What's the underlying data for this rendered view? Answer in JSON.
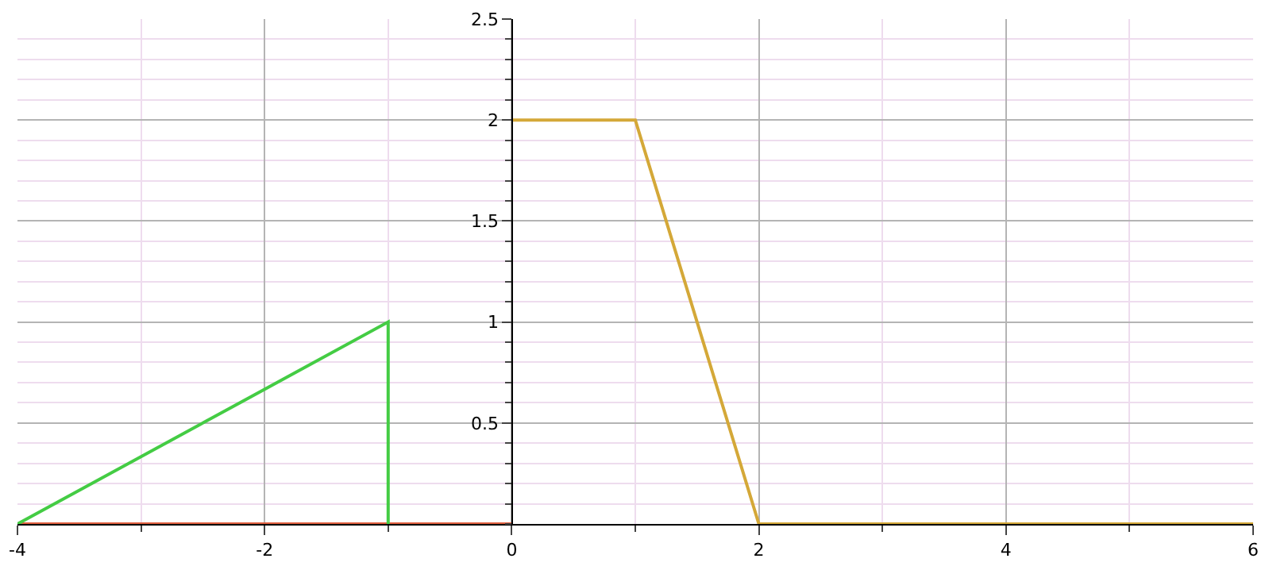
{
  "chart_data": {
    "type": "line",
    "xlim": [
      -4,
      6
    ],
    "ylim": [
      0,
      2.5
    ],
    "xticks": [
      -4,
      -2,
      0,
      2,
      4,
      6
    ],
    "yticks": [
      0.5,
      1,
      1.5,
      2,
      2.5
    ],
    "grid": true,
    "legend": false,
    "marker": "none",
    "line_style": "solid",
    "series": [
      {
        "color": "#e06040",
        "x": [
          -4,
          0
        ],
        "values": [
          0,
          0
        ]
      },
      {
        "color": "#44cc44",
        "x": [
          -4,
          -1,
          -1
        ],
        "values": [
          0,
          1,
          0
        ]
      },
      {
        "color": "#d4a838",
        "x": [
          0,
          1,
          2,
          6
        ],
        "values": [
          2,
          2,
          0,
          0
        ]
      }
    ]
  }
}
